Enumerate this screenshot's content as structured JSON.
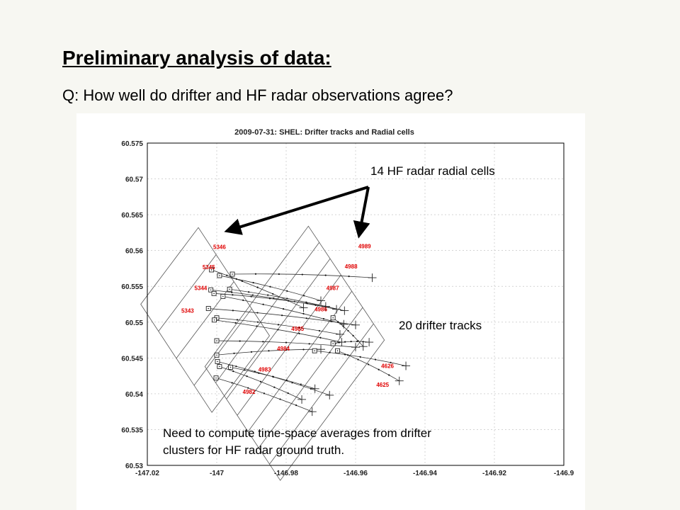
{
  "slide": {
    "title": "Preliminary analysis of data:",
    "question": "Q: How well do drifter and HF radar observations agree?"
  },
  "annotations": {
    "radial_cells": "14 HF radar radial cells",
    "drifter_tracks": "20 drifter tracks",
    "note": "Need to compute time-space averages from drifter\nclusters for HF radar ground truth."
  },
  "colors": {
    "cell_label": "#e00000",
    "track": "#333333",
    "grid": "#bbbbbb"
  },
  "chart_data": {
    "type": "scatter",
    "title": "2009-07-31: SHEL: Drifter tracks and Radial cells",
    "xlabel": "",
    "ylabel": "",
    "xlim": [
      -147.02,
      -146.9
    ],
    "ylim": [
      60.53,
      60.575
    ],
    "grid": true,
    "x_ticks": [
      "-147.02",
      "-147",
      "-146.98",
      "-146.96",
      "-146.94",
      "-146.92",
      "-146.9"
    ],
    "y_ticks": [
      "60.575",
      "60.57",
      "60.565",
      "60.56",
      "60.555",
      "60.55",
      "60.545",
      "60.54",
      "60.535",
      "60.53"
    ],
    "cell_groups": [
      {
        "corners": [
          [
            -147.0219,
            60.5525
          ],
          [
            -147.0053,
            60.5632
          ],
          [
            -146.9848,
            60.5481
          ],
          [
            -147.0014,
            60.5374
          ]
        ],
        "divisions": 4
      },
      {
        "corners": [
          [
            -147.0034,
            60.5438
          ],
          [
            -146.9736,
            60.5634
          ],
          [
            -146.9517,
            60.5475
          ],
          [
            -146.9817,
            60.5279
          ]
        ],
        "divisions": 7
      }
    ],
    "cells": [
      {
        "label": "5346",
        "x": -146.9992,
        "y": 60.5602
      },
      {
        "label": "5345",
        "x": -147.0023,
        "y": 60.5574
      },
      {
        "label": "5344",
        "x": -147.0046,
        "y": 60.5545
      },
      {
        "label": "5343",
        "x": -147.0084,
        "y": 60.5513
      },
      {
        "label": "4989",
        "x": -146.9574,
        "y": 60.5603
      },
      {
        "label": "4988",
        "x": -146.9613,
        "y": 60.5575
      },
      {
        "label": "4987",
        "x": -146.9666,
        "y": 60.5545
      },
      {
        "label": "4986",
        "x": -146.97,
        "y": 60.5515
      },
      {
        "label": "4985",
        "x": -146.9767,
        "y": 60.5488
      },
      {
        "label": "4984",
        "x": -146.9808,
        "y": 60.546
      },
      {
        "label": "4983",
        "x": -146.9862,
        "y": 60.5431
      },
      {
        "label": "4626",
        "x": -146.9508,
        "y": 60.5436
      },
      {
        "label": "4625",
        "x": -146.9522,
        "y": 60.541
      },
      {
        "label": "4982",
        "x": -146.9907,
        "y": 60.54
      }
    ],
    "tracks": [
      {
        "start": [
          -147.0015,
          60.5573
        ],
        "end": [
          -146.975,
          60.552
        ]
      },
      {
        "start": [
          -146.9992,
          60.5565
        ],
        "end": [
          -146.97,
          60.553
        ]
      },
      {
        "start": [
          -146.9955,
          60.5567
        ],
        "end": [
          -146.9552,
          60.5562
        ]
      },
      {
        "start": [
          -147.0017,
          60.5545
        ],
        "end": [
          -146.9655,
          60.5518
        ]
      },
      {
        "start": [
          -146.9982,
          60.5536
        ],
        "end": [
          -146.9634,
          60.5497
        ]
      },
      {
        "start": [
          -146.9963,
          60.5546
        ],
        "end": [
          -146.9632,
          60.5516
        ]
      },
      {
        "start": [
          -147.0008,
          60.554
        ],
        "end": [
          -146.9686,
          60.5522
        ]
      },
      {
        "start": [
          -147.0024,
          60.5519
        ],
        "end": [
          -146.96,
          60.5496
        ]
      },
      {
        "start": [
          -147.0,
          60.5506
        ],
        "end": [
          -146.9645,
          60.5483
        ]
      },
      {
        "start": [
          -147.0007,
          60.5503
        ],
        "end": [
          -146.964,
          60.5472
        ]
      },
      {
        "start": [
          -147.0,
          60.5474
        ],
        "end": [
          -146.96,
          60.5465
        ]
      },
      {
        "start": [
          -146.9665,
          60.5506
        ],
        "end": [
          -146.9578,
          60.5466
        ]
      },
      {
        "start": [
          -147.0,
          60.5454
        ],
        "end": [
          -146.97,
          60.5462
        ]
      },
      {
        "start": [
          -146.9718,
          60.546
        ],
        "end": [
          -146.9455,
          60.5439
        ]
      },
      {
        "start": [
          -146.9652,
          60.546
        ],
        "end": [
          -146.9474,
          60.5418
        ]
      },
      {
        "start": [
          -146.9998,
          60.5445
        ],
        "end": [
          -146.9675,
          60.5398
        ]
      },
      {
        "start": [
          -146.9992,
          60.5438
        ],
        "end": [
          -146.9755,
          60.5392
        ]
      },
      {
        "start": [
          -146.996,
          60.5437
        ],
        "end": [
          -146.9717,
          60.5407
        ]
      },
      {
        "start": [
          -147.0002,
          60.5422
        ],
        "end": [
          -146.9725,
          60.5375
        ]
      },
      {
        "start": [
          -146.9665,
          60.547
        ],
        "end": [
          -146.9561,
          60.5472
        ]
      }
    ]
  }
}
